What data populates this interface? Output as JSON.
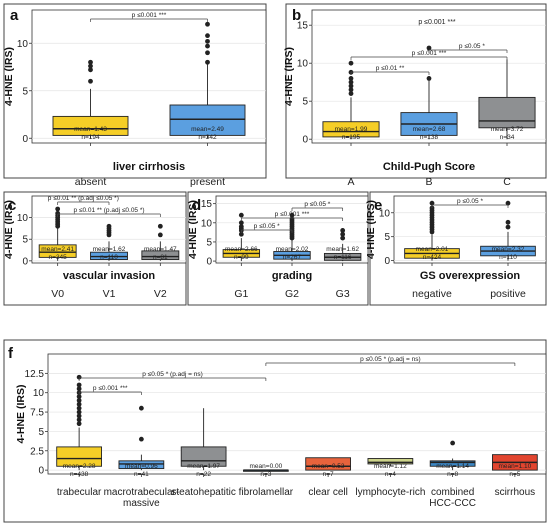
{
  "chart_data": [
    {
      "panel": "a",
      "type": "box",
      "ylabel": "4-HNE (IRS)",
      "xlabel": "liver cirrhosis",
      "ylim": [
        -0.5,
        13.5
      ],
      "yticks": [
        0,
        5,
        10
      ],
      "groups": [
        {
          "name": "absent",
          "color": "#F5CE27",
          "q1": 0.3,
          "median": 1.0,
          "q3": 2.3,
          "whisker_low": 0.0,
          "whisker_high": 5.2,
          "outliers": [
            6,
            7.2,
            7.6,
            8
          ],
          "stat_mean": "mean=1.43",
          "stat_n": "n=194"
        },
        {
          "name": "present",
          "color": "#5B9FE0",
          "q1": 0.3,
          "median": 2.0,
          "q3": 3.5,
          "whisker_low": 0.0,
          "whisker_high": 7.8,
          "outliers": [
            8,
            9,
            9.7,
            10.2,
            10.8,
            12
          ],
          "stat_mean": "mean=2.49",
          "stat_n": "n=342"
        }
      ],
      "comparisons": [
        {
          "from": 0,
          "to": 1,
          "label": "p ≤0.001 ***"
        }
      ]
    },
    {
      "panel": "b",
      "type": "box",
      "ylabel": "4-HNE (IRS)",
      "xlabel": "Child-Pugh Score",
      "ylim": [
        -0.5,
        17
      ],
      "yticks": [
        0,
        5,
        10,
        15
      ],
      "groups": [
        {
          "name": "A",
          "color": "#F5CE27",
          "q1": 0.3,
          "median": 1.0,
          "q3": 2.3,
          "whisker_low": 0.0,
          "whisker_high": 5.5,
          "outliers": [
            6,
            6.5,
            7,
            7.5,
            8,
            8.8,
            10
          ],
          "stat_mean": "mean=1.99",
          "stat_n": "n=195"
        },
        {
          "name": "B",
          "color": "#5B9FE0",
          "q1": 0.5,
          "median": 2.0,
          "q3": 3.5,
          "whisker_low": 0.0,
          "whisker_high": 7.8,
          "outliers": [
            8,
            12
          ],
          "stat_mean": "mean=2.68",
          "stat_n": "n=138"
        },
        {
          "name": "C",
          "color": "#8E9092",
          "q1": 1.5,
          "median": 2.4,
          "q3": 5.5,
          "whisker_low": 0.0,
          "whisker_high": 10.5,
          "outliers": [],
          "stat_mean": "mean=3.72",
          "stat_n": "n=34"
        }
      ],
      "comparisons": [
        {
          "from": 0,
          "to": 1,
          "label": "p ≤0.01 **"
        },
        {
          "from": 0,
          "to": 2,
          "label": "p ≤0.001 ***"
        },
        {
          "from": 1,
          "to": 2,
          "label": "p ≤0.05 *"
        }
      ],
      "top_annotation": "p ≤0.001 ***"
    },
    {
      "panel": "c",
      "type": "box",
      "ylabel": "4-HNE (IRS)",
      "xlabel": "vascular invasion",
      "ylim": [
        -0.5,
        15
      ],
      "yticks": [
        0,
        5,
        10
      ],
      "groups": [
        {
          "name": "V0",
          "color": "#F5CE27",
          "q1": 0.8,
          "median": 2.0,
          "q3": 3.7,
          "whisker_low": 0.0,
          "whisker_high": 7.5,
          "outliers": [
            8,
            8.5,
            9,
            9.5,
            10,
            10.5,
            11,
            12
          ],
          "stat_mean": "mean=2.41",
          "stat_n": "n=345"
        },
        {
          "name": "V1",
          "color": "#5B9FE0",
          "q1": 0.3,
          "median": 1.0,
          "q3": 2.0,
          "whisker_low": 0.0,
          "whisker_high": 4.5,
          "outliers": [
            6,
            6.5,
            7,
            7.5,
            8
          ],
          "stat_mean": "mean=1.62",
          "stat_n": "n=110"
        },
        {
          "name": "V2",
          "color": "#8E9092",
          "q1": 0.3,
          "median": 1.0,
          "q3": 2.3,
          "whisker_low": 0.0,
          "whisker_high": 4.5,
          "outliers": [
            6,
            8
          ],
          "stat_mean": "mean=1.47",
          "stat_n": "n=81"
        }
      ],
      "comparisons": [
        {
          "from": 0,
          "to": 1,
          "label": "p ≤0.01 ** (p.adj ≤0.05 *)"
        },
        {
          "from": 0,
          "to": 2,
          "label": "p ≤0.01 ** (p.adj ≤0.05 *)"
        }
      ]
    },
    {
      "panel": "d",
      "type": "box",
      "ylabel": "4-HNE (IRS)",
      "xlabel": "grading",
      "ylim": [
        -0.5,
        17
      ],
      "yticks": [
        0,
        5,
        10,
        15
      ],
      "groups": [
        {
          "name": "G1",
          "color": "#F5CE27",
          "q1": 1.0,
          "median": 2.0,
          "q3": 3.0,
          "whisker_low": 0.0,
          "whisker_high": 6.0,
          "outliers": [
            7,
            8,
            8.5,
            9,
            10,
            12
          ],
          "stat_mean": "mean=2.66",
          "stat_n": "n=99"
        },
        {
          "name": "G2",
          "color": "#5B9FE0",
          "q1": 0.5,
          "median": 1.5,
          "q3": 2.5,
          "whisker_low": 0.0,
          "whisker_high": 5.5,
          "outliers": [
            6,
            6.5,
            7,
            7.5,
            8,
            8.5,
            9,
            9.5,
            10,
            10.5,
            11,
            12
          ],
          "stat_mean": "mean=2.02",
          "stat_n": "n=267"
        },
        {
          "name": "G3",
          "color": "#8E9092",
          "q1": 0.2,
          "median": 1.0,
          "q3": 2.0,
          "whisker_low": 0.0,
          "whisker_high": 4.5,
          "outliers": [
            6,
            7,
            8
          ],
          "stat_mean": "mean=1.62",
          "stat_n": "n=116"
        }
      ],
      "comparisons": [
        {
          "from": 0,
          "to": 1,
          "label": "p ≤0.05 *"
        },
        {
          "from": 0,
          "to": 2,
          "label": "p ≤0.001 ***"
        },
        {
          "from": 1,
          "to": 2,
          "label": "p ≤0.05 *"
        }
      ]
    },
    {
      "panel": "e",
      "type": "box",
      "ylabel": "4-HNE (IRS)",
      "xlabel": "GS overexpression",
      "ylim": [
        -0.5,
        13.5
      ],
      "yticks": [
        0,
        5,
        10
      ],
      "groups": [
        {
          "name": "negative",
          "color": "#F5CE27",
          "q1": 0.5,
          "median": 1.5,
          "q3": 2.5,
          "whisker_low": 0.0,
          "whisker_high": 5.5,
          "outliers": [
            6,
            6.5,
            7,
            7.5,
            8,
            8.5,
            9,
            9.5,
            10,
            10.5,
            11,
            12
          ],
          "stat_mean": "mean=2.01",
          "stat_n": "n=424"
        },
        {
          "name": "positive",
          "color": "#5B9FE0",
          "q1": 1.0,
          "median": 2.0,
          "q3": 3.0,
          "whisker_low": 0.0,
          "whisker_high": 6.0,
          "outliers": [
            7,
            8,
            12
          ],
          "stat_mean": "mean=2.32",
          "stat_n": "n=110"
        }
      ],
      "comparisons": [
        {
          "from": 0,
          "to": 1,
          "label": "p ≤0.05 *"
        }
      ]
    },
    {
      "panel": "f",
      "type": "box",
      "ylabel": "4-HNE (IRS)",
      "xlabel": "",
      "ylim": [
        -0.5,
        15
      ],
      "yticks": [
        0,
        2.5,
        5,
        7.5,
        10,
        12.5
      ],
      "ytick_labels": [
        "0",
        "2.5",
        "5",
        "7.5",
        "10",
        "12.5"
      ],
      "groups": [
        {
          "name": "trabecular",
          "color": "#F5CE27",
          "q1": 0.5,
          "median": 1.5,
          "q3": 3.0,
          "whisker_low": 0.0,
          "whisker_high": 5.5,
          "outliers": [
            6,
            6.5,
            7,
            7.5,
            8,
            8.5,
            9,
            9.5,
            10,
            10.5,
            11,
            12
          ],
          "stat_mean": "mean=2.28",
          "stat_n": "n=438"
        },
        {
          "name": "macrotrabecular-\nmassive",
          "color": "#5B9FE0",
          "q1": 0.2,
          "median": 0.8,
          "q3": 1.2,
          "whisker_low": 0.0,
          "whisker_high": 2.0,
          "outliers": [
            4,
            8
          ],
          "stat_mean": "mean=0.96",
          "stat_n": "n=41"
        },
        {
          "name": "steatohepatitic",
          "color": "#8E9092",
          "q1": 0.5,
          "median": 1.2,
          "q3": 3.0,
          "whisker_low": 0.0,
          "whisker_high": 8.0,
          "outliers": [],
          "stat_mean": "mean=1.97",
          "stat_n": "n=22"
        },
        {
          "name": "fibrolamellar",
          "color": "#2E6FB5",
          "q1": 0.0,
          "median": 0.0,
          "q3": 0.0,
          "whisker_low": 0.0,
          "whisker_high": 0.0,
          "outliers": [],
          "stat_mean": "mean=0.00",
          "stat_n": "n=3"
        },
        {
          "name": "clear cell",
          "color": "#E8633C",
          "q1": 0.0,
          "median": 0.5,
          "q3": 1.6,
          "whisker_low": 0.0,
          "whisker_high": 1.6,
          "outliers": [],
          "stat_mean": "mean=0.53",
          "stat_n": "n=7"
        },
        {
          "name": "lymphocyte-rich",
          "color": "#CDD48A",
          "q1": 0.8,
          "median": 1.0,
          "q3": 1.5,
          "whisker_low": 0.5,
          "whisker_high": 1.5,
          "outliers": [],
          "stat_mean": "mean=1.12",
          "stat_n": "n=4"
        },
        {
          "name": "combined\nHCC-CCC",
          "color": "#3C87C4",
          "q1": 0.5,
          "median": 1.0,
          "q3": 1.2,
          "whisker_low": 0.0,
          "whisker_high": 1.5,
          "outliers": [
            3.5
          ],
          "stat_mean": "mean=1.14",
          "stat_n": "n=8"
        },
        {
          "name": "scirrhous",
          "color": "#E2452F",
          "q1": 0.0,
          "median": 1.0,
          "q3": 2.0,
          "whisker_low": 0.0,
          "whisker_high": 2.0,
          "outliers": [],
          "stat_mean": "mean=1.10",
          "stat_n": "n=5"
        }
      ],
      "comparisons": [
        {
          "from": 0,
          "to": 1,
          "label": "p ≤0.001 ***"
        },
        {
          "from": 0,
          "to": 3,
          "label": "p ≤0.05 * (p.adj = ns)"
        },
        {
          "from": 3,
          "to": 7,
          "label": "p ≤0.05 * (p.adj = ns)"
        }
      ]
    }
  ]
}
